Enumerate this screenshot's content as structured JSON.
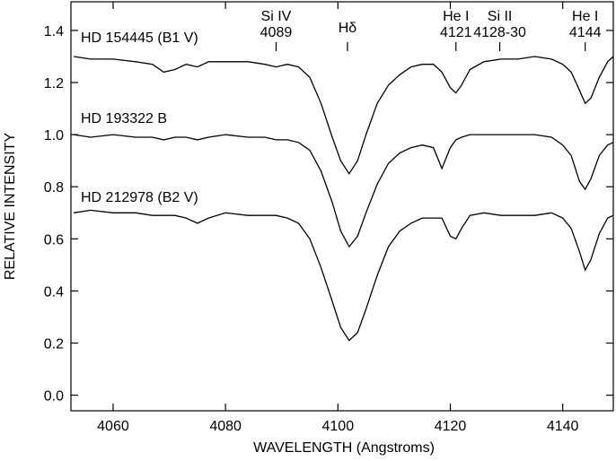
{
  "chart_data": {
    "type": "line",
    "xlabel": "WAVELENGTH (Angstroms)",
    "ylabel": "RELATIVE INTENSITY",
    "x": [
      4053,
      4056,
      4060,
      4064,
      4067,
      4069,
      4071,
      4073,
      4075,
      4077,
      4080,
      4084,
      4087,
      4089,
      4091,
      4093,
      4095,
      4097,
      4099,
      4100.5,
      4102,
      4103.5,
      4105,
      4107,
      4109,
      4111,
      4113,
      4115,
      4117,
      4118.5,
      4120,
      4121,
      4122,
      4123.5,
      4126,
      4129,
      4132,
      4135,
      4138,
      4140,
      4141.5,
      4143,
      4144,
      4145,
      4146.5,
      4148,
      4149
    ],
    "series": [
      {
        "name": "HD 154445 (B1 V)",
        "color": "#000000",
        "values": [
          1.3,
          1.29,
          1.29,
          1.28,
          1.27,
          1.24,
          1.25,
          1.27,
          1.26,
          1.28,
          1.28,
          1.28,
          1.27,
          1.26,
          1.27,
          1.26,
          1.22,
          1.12,
          0.99,
          0.9,
          0.85,
          0.9,
          1.0,
          1.12,
          1.19,
          1.23,
          1.26,
          1.27,
          1.27,
          1.24,
          1.18,
          1.16,
          1.19,
          1.25,
          1.28,
          1.29,
          1.29,
          1.3,
          1.29,
          1.27,
          1.24,
          1.17,
          1.12,
          1.14,
          1.22,
          1.28,
          1.3
        ]
      },
      {
        "name": "HD 193322 B",
        "color": "#000000",
        "values": [
          1.0,
          0.99,
          1.0,
          0.99,
          0.99,
          0.98,
          0.99,
          0.99,
          0.98,
          0.99,
          1.0,
          0.99,
          0.99,
          0.98,
          0.98,
          0.97,
          0.94,
          0.86,
          0.74,
          0.63,
          0.57,
          0.61,
          0.7,
          0.81,
          0.89,
          0.93,
          0.95,
          0.96,
          0.95,
          0.87,
          0.95,
          0.98,
          0.99,
          1.0,
          1.0,
          1.0,
          1.0,
          1.0,
          0.99,
          0.96,
          0.92,
          0.82,
          0.79,
          0.83,
          0.92,
          0.96,
          0.97
        ]
      },
      {
        "name": "HD 212978 (B2 V)",
        "color": "#000000",
        "values": [
          0.7,
          0.71,
          0.7,
          0.7,
          0.69,
          0.69,
          0.69,
          0.68,
          0.66,
          0.68,
          0.7,
          0.69,
          0.69,
          0.69,
          0.68,
          0.66,
          0.6,
          0.49,
          0.36,
          0.26,
          0.21,
          0.24,
          0.33,
          0.46,
          0.57,
          0.63,
          0.66,
          0.68,
          0.68,
          0.68,
          0.61,
          0.6,
          0.64,
          0.69,
          0.7,
          0.69,
          0.69,
          0.69,
          0.7,
          0.68,
          0.64,
          0.55,
          0.48,
          0.52,
          0.62,
          0.68,
          0.69
        ]
      }
    ],
    "annotations": [
      {
        "label": [
          "Si IV",
          "4089"
        ],
        "x": 4089
      },
      {
        "label": [
          "Hδ"
        ],
        "x": 4101.7
      },
      {
        "label": [
          "He I",
          "4121"
        ],
        "x": 4121
      },
      {
        "label": [
          "Si II",
          "4128-30"
        ],
        "x": 4128.8
      },
      {
        "label": [
          "He I",
          "4144"
        ],
        "x": 4144
      }
    ],
    "xlim": [
      4052.5,
      4149
    ],
    "ylim": [
      -0.06,
      1.51
    ],
    "xticks": [
      4060,
      4080,
      4100,
      4120,
      4140
    ],
    "yticks": [
      {
        "value": 0,
        "label": "0.0"
      },
      {
        "value": 0.2,
        "label": "0.2"
      },
      {
        "value": 0.4,
        "label": "0.4"
      },
      {
        "value": 0.6,
        "label": "0.6"
      },
      {
        "value": 0.8,
        "label": "0.8"
      },
      {
        "value": 1,
        "label": "1.0"
      },
      {
        "value": 1.2,
        "label": "1.2"
      },
      {
        "value": 1.4,
        "label": "1.4"
      }
    ]
  }
}
